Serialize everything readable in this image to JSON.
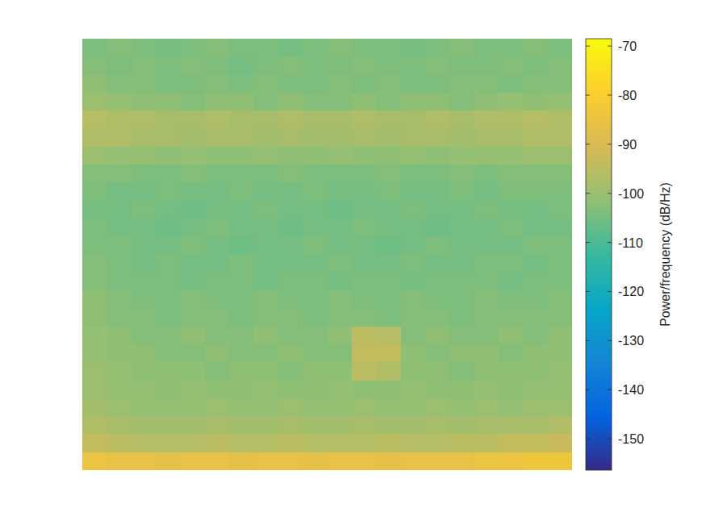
{
  "chart_data": {
    "type": "heatmap",
    "tick_labels": false,
    "colorbar": {
      "label": "Power/frequency (dB/Hz)",
      "lim": [
        -156.4,
        -68.5
      ],
      "ticks": [
        -70,
        -80,
        -90,
        -100,
        -110,
        -120,
        -130,
        -140,
        -150
      ]
    },
    "cells": [
      [
        -104,
        -103,
        -104,
        -105,
        -104,
        -103,
        -104,
        -104,
        -105,
        -104,
        -103,
        -104,
        -104,
        -105,
        -104,
        -103,
        -104,
        -104,
        -103,
        -104
      ],
      [
        -103,
        -104,
        -103,
        -104,
        -103,
        -104,
        -105,
        -104,
        -103,
        -104,
        -104,
        -103,
        -104,
        -104,
        -103,
        -104,
        -104,
        -103,
        -104,
        -103
      ],
      [
        -102,
        -103,
        -103,
        -104,
        -104,
        -103,
        -104,
        -103,
        -104,
        -104,
        -103,
        -104,
        -103,
        -104,
        -104,
        -103,
        -103,
        -104,
        -103,
        -103
      ],
      [
        -100,
        -101,
        -102,
        -102,
        -103,
        -102,
        -102,
        -103,
        -102,
        -103,
        -103,
        -102,
        -103,
        -102,
        -102,
        -103,
        -102,
        -101,
        -102,
        -101
      ],
      [
        -96,
        -97,
        -97,
        -98,
        -98,
        -97,
        -98,
        -98,
        -97,
        -98,
        -98,
        -97,
        -98,
        -98,
        -97,
        -98,
        -97,
        -97,
        -96,
        -97
      ],
      [
        -97,
        -97,
        -98,
        -98,
        -99,
        -98,
        -98,
        -99,
        -98,
        -99,
        -99,
        -98,
        -99,
        -98,
        -98,
        -99,
        -98,
        -98,
        -97,
        -97
      ],
      [
        -100,
        -101,
        -101,
        -102,
        -101,
        -102,
        -102,
        -101,
        -102,
        -102,
        -101,
        -102,
        -102,
        -101,
        -102,
        -101,
        -101,
        -101,
        -100,
        -100
      ],
      [
        -103,
        -103,
        -104,
        -104,
        -103,
        -104,
        -104,
        -104,
        -103,
        -104,
        -104,
        -104,
        -103,
        -104,
        -104,
        -103,
        -104,
        -103,
        -103,
        -103
      ],
      [
        -104,
        -105,
        -105,
        -104,
        -105,
        -105,
        -104,
        -105,
        -105,
        -104,
        -105,
        -105,
        -104,
        -105,
        -105,
        -104,
        -105,
        -104,
        -104,
        -104
      ],
      [
        -105,
        -105,
        -104,
        -105,
        -106,
        -105,
        -105,
        -104,
        -105,
        -105,
        -106,
        -105,
        -105,
        -104,
        -105,
        -105,
        -104,
        -105,
        -105,
        -104
      ],
      [
        -104,
        -105,
        -105,
        -106,
        -105,
        -104,
        -105,
        -105,
        -106,
        -105,
        -105,
        -104,
        -105,
        -105,
        -106,
        -105,
        -105,
        -104,
        -105,
        -105
      ],
      [
        -104,
        -104,
        -105,
        -105,
        -104,
        -105,
        -106,
        -105,
        -105,
        -104,
        -105,
        -105,
        -106,
        -105,
        -104,
        -105,
        -105,
        -105,
        -104,
        -104
      ],
      [
        -103,
        -104,
        -105,
        -104,
        -105,
        -105,
        -104,
        -105,
        -105,
        -105,
        -104,
        -105,
        -105,
        -104,
        -105,
        -105,
        -104,
        -104,
        -105,
        -104
      ],
      [
        -103,
        -104,
        -104,
        -104,
        -105,
        -104,
        -104,
        -105,
        -104,
        -104,
        -105,
        -104,
        -104,
        -105,
        -104,
        -104,
        -104,
        -105,
        -104,
        -104
      ],
      [
        -102,
        -103,
        -104,
        -104,
        -103,
        -104,
        -104,
        -103,
        -104,
        -104,
        -103,
        -104,
        -104,
        -103,
        -104,
        -104,
        -103,
        -104,
        -104,
        -103
      ],
      [
        -102,
        -103,
        -103,
        -104,
        -103,
        -103,
        -104,
        -103,
        -103,
        -104,
        -103,
        -103,
        -104,
        -103,
        -103,
        -104,
        -103,
        -103,
        -103,
        -103
      ],
      [
        -101,
        -102,
        -103,
        -103,
        -102,
        -103,
        -103,
        -102,
        -103,
        -103,
        -102,
        -95,
        -96,
        -103,
        -102,
        -103,
        -103,
        -102,
        -103,
        -102
      ],
      [
        -101,
        -102,
        -102,
        -103,
        -103,
        -102,
        -103,
        -103,
        -102,
        -103,
        -103,
        -94,
        -94,
        -102,
        -103,
        -102,
        -102,
        -103,
        -102,
        -102
      ],
      [
        -100,
        -101,
        -102,
        -102,
        -102,
        -103,
        -102,
        -102,
        -103,
        -102,
        -102,
        -95,
        -97,
        -102,
        -102,
        -103,
        -102,
        -102,
        -102,
        -101
      ],
      [
        -100,
        -101,
        -101,
        -102,
        -101,
        -102,
        -102,
        -101,
        -102,
        -102,
        -101,
        -102,
        -102,
        -101,
        -102,
        -102,
        -101,
        -102,
        -101,
        -101
      ],
      [
        -99,
        -100,
        -101,
        -101,
        -101,
        -100,
        -101,
        -101,
        -100,
        -101,
        -101,
        -100,
        -101,
        -101,
        -100,
        -101,
        -100,
        -101,
        -100,
        -100
      ],
      [
        -97,
        -98,
        -99,
        -99,
        -99,
        -98,
        -99,
        -99,
        -98,
        -99,
        -99,
        -98,
        -99,
        -99,
        -98,
        -99,
        -98,
        -98,
        -98,
        -97
      ],
      [
        -94,
        -95,
        -96,
        -96,
        -96,
        -95,
        -96,
        -96,
        -95,
        -96,
        -96,
        -96,
        -95,
        -96,
        -96,
        -95,
        -95,
        -94,
        -94,
        -93
      ],
      [
        -85,
        -86,
        -86,
        -87,
        -86,
        -86,
        -87,
        -86,
        -86,
        -87,
        -86,
        -86,
        -87,
        -86,
        -86,
        -86,
        -85,
        -85,
        -84,
        -84
      ]
    ]
  }
}
